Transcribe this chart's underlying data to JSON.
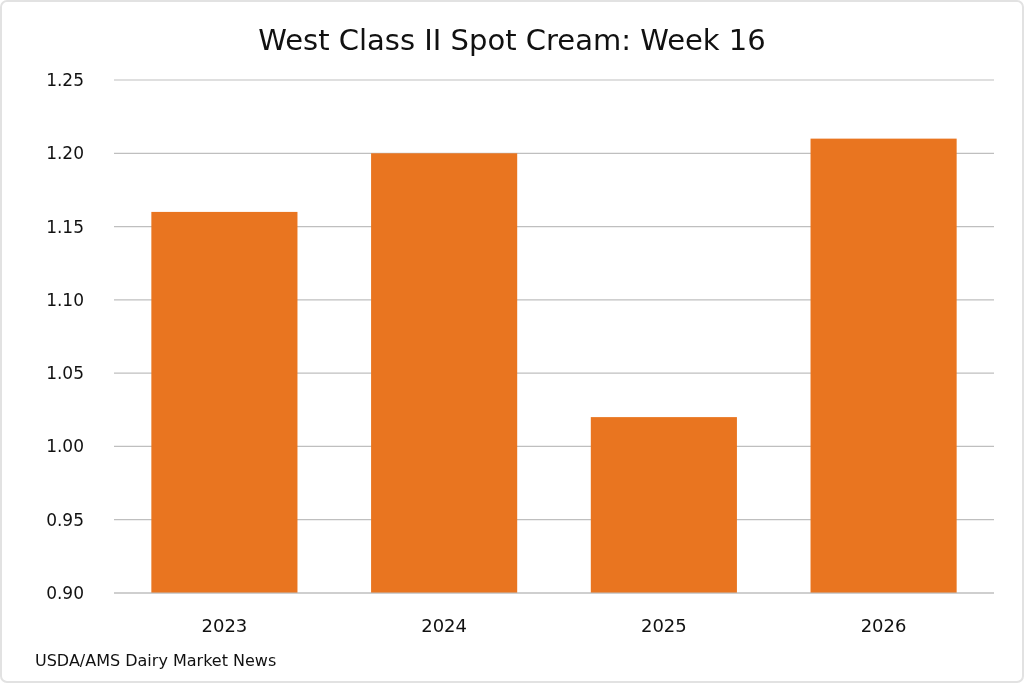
{
  "chart_data": {
    "type": "bar",
    "title": "West Class II Spot Cream: Week 16",
    "categories": [
      "2023",
      "2024",
      "2025",
      "2026"
    ],
    "values": [
      1.16,
      1.2,
      1.02,
      1.21
    ],
    "color": "#e97520",
    "ylim": [
      0.9,
      1.25
    ],
    "yticks": [
      {
        "value": 0.9,
        "label": "0.90"
      },
      {
        "value": 0.95,
        "label": "0.95"
      },
      {
        "value": 1.0,
        "label": "1.00"
      },
      {
        "value": 1.05,
        "label": "1.05"
      },
      {
        "value": 1.1,
        "label": "1.10"
      },
      {
        "value": 1.15,
        "label": "1.15"
      },
      {
        "value": 1.2,
        "label": "1.20"
      },
      {
        "value": 1.25,
        "label": "1.25"
      }
    ],
    "grid": "y",
    "annotations": [
      "USDA/AMS Dairy Market News"
    ]
  }
}
